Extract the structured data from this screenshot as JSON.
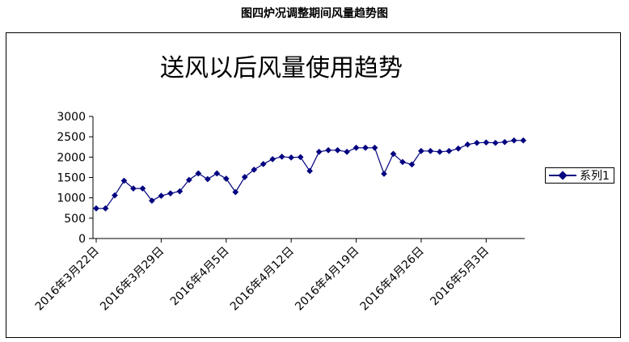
{
  "caption": "图四炉况调整期间风量趋势图",
  "chart_data": {
    "type": "line",
    "title": "送风以后风量使用趋势",
    "ylim": [
      0,
      3000
    ],
    "yticks": [
      0,
      500,
      1000,
      1500,
      2000,
      2500,
      3000
    ],
    "xtick_labels": [
      "2016年3月22日",
      "2016年3月29日",
      "2016年4月5日",
      "2016年4月12日",
      "2016年4月19日",
      "2016年4月26日",
      "2016年5月3日"
    ],
    "xtick_positions": [
      0,
      7,
      14,
      21,
      28,
      35,
      42
    ],
    "legend_position": "right",
    "grid": false,
    "series": [
      {
        "name": "系列1",
        "color": "#000080",
        "values": [
          740,
          740,
          1060,
          1420,
          1230,
          1230,
          930,
          1050,
          1110,
          1160,
          1440,
          1600,
          1460,
          1600,
          1470,
          1140,
          1510,
          1690,
          1830,
          1950,
          2010,
          1990,
          2000,
          1660,
          2130,
          2170,
          2170,
          2130,
          2230,
          2230,
          2230,
          1590,
          2080,
          1880,
          1820,
          2150,
          2150,
          2130,
          2150,
          2210,
          2310,
          2350,
          2360,
          2350,
          2370,
          2410,
          2410
        ]
      }
    ]
  }
}
